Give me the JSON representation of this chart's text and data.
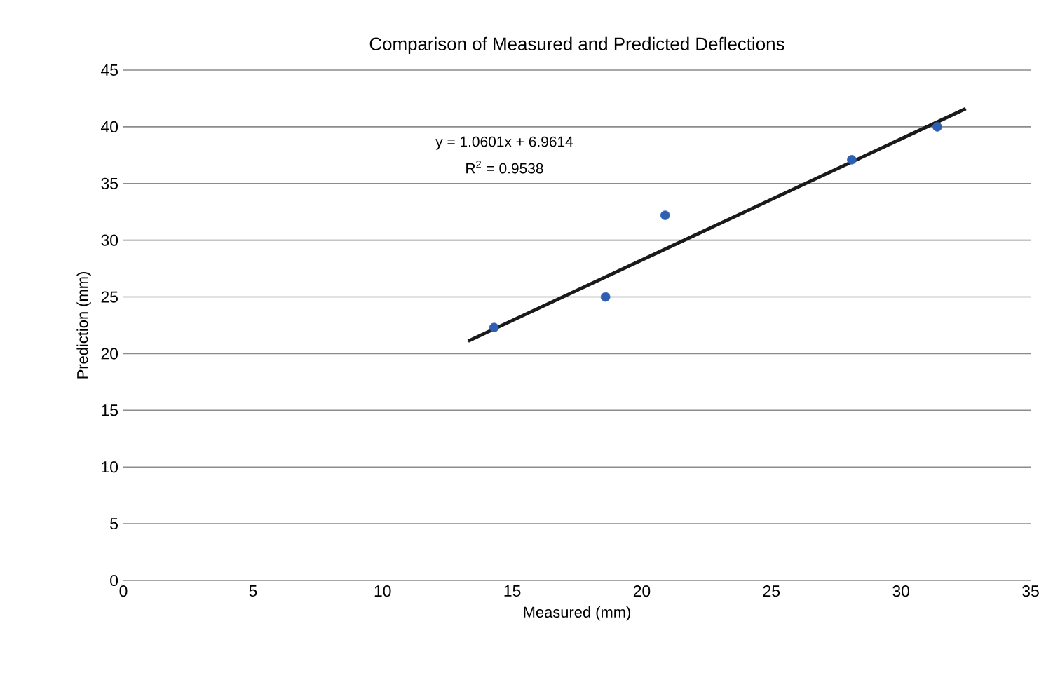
{
  "chart_data": {
    "type": "scatter",
    "title": "Comparison of Measured and Predicted Deflections",
    "xlabel": "Measured (mm)",
    "ylabel": "Prediction (mm)",
    "series": [
      {
        "color": "#2f5fb3",
        "marker": "circle",
        "x": [
          14.3,
          18.6,
          20.9,
          28.1,
          31.4
        ],
        "values": [
          22.3,
          25,
          32.2,
          37.1,
          40
        ]
      },
      {
        "type": "line",
        "color": "#1a1a1a",
        "marker": "none",
        "line_style": "solid",
        "x": [
          13.3,
          32.5
        ],
        "values": [
          21.1,
          41.6
        ]
      }
    ],
    "annotations": [
      "y = 1.0601x + 6.9614",
      "R$^{2}$ = 0.9538"
    ],
    "xlim": [
      0,
      35
    ],
    "ylim": [
      0,
      45
    ],
    "xticks": [
      0,
      5,
      10,
      15,
      20,
      25,
      30,
      35
    ],
    "yticks": [
      0,
      5,
      10,
      15,
      20,
      25,
      30,
      35,
      40,
      45
    ],
    "grid": "y"
  }
}
